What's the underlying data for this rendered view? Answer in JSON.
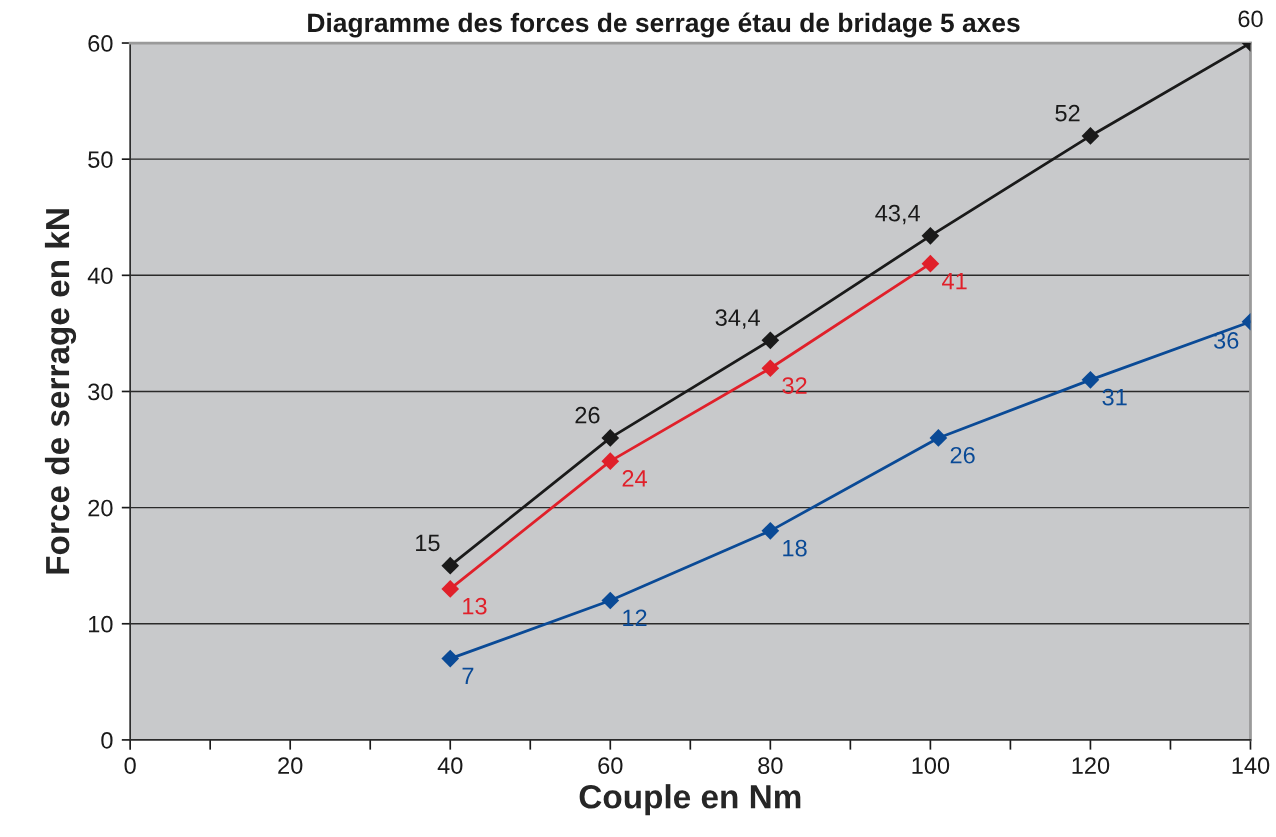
{
  "chart_data": {
    "type": "line",
    "title": "Diagramme des forces de serrage étau de bridage 5 axes",
    "xlabel": "Couple en Nm",
    "ylabel": "Force de serrage en kN",
    "xlim": [
      0,
      140
    ],
    "ylim": [
      0,
      60
    ],
    "xticks": [
      0,
      {
        "value": 10,
        "label": null
      },
      20,
      {
        "value": 30,
        "label": null
      },
      40,
      {
        "value": 50,
        "label": null
      },
      60,
      {
        "value": 70,
        "label": null
      },
      80,
      {
        "value": 90,
        "label": null
      },
      100,
      {
        "value": 110,
        "label": null
      },
      120,
      {
        "value": 130,
        "label": null
      },
      140
    ],
    "yticks": [
      0,
      10,
      20,
      30,
      40,
      50,
      60
    ],
    "grid": "y",
    "marker": "diamond",
    "line_style": "solid",
    "series": [
      {
        "color": "#1a1a1a",
        "x": [
          40,
          60,
          80,
          100,
          120,
          140
        ],
        "values": [
          15,
          26,
          34.4,
          43.4,
          52,
          60
        ],
        "value_labels": [
          "15",
          "26",
          "34,4",
          "43,4",
          "52",
          "60"
        ]
      },
      {
        "color": "#e0202a",
        "x": [
          40,
          60,
          80,
          100
        ],
        "values": [
          13,
          24,
          32,
          41
        ],
        "value_labels": [
          "13",
          "24",
          "32",
          "41"
        ]
      },
      {
        "color": "#0a4a96",
        "x": [
          40,
          60,
          80,
          101,
          120,
          140
        ],
        "values": [
          7,
          12,
          18,
          26,
          31,
          36
        ],
        "value_labels": [
          "7",
          "12",
          "18",
          "26",
          "31",
          "36"
        ]
      }
    ]
  }
}
